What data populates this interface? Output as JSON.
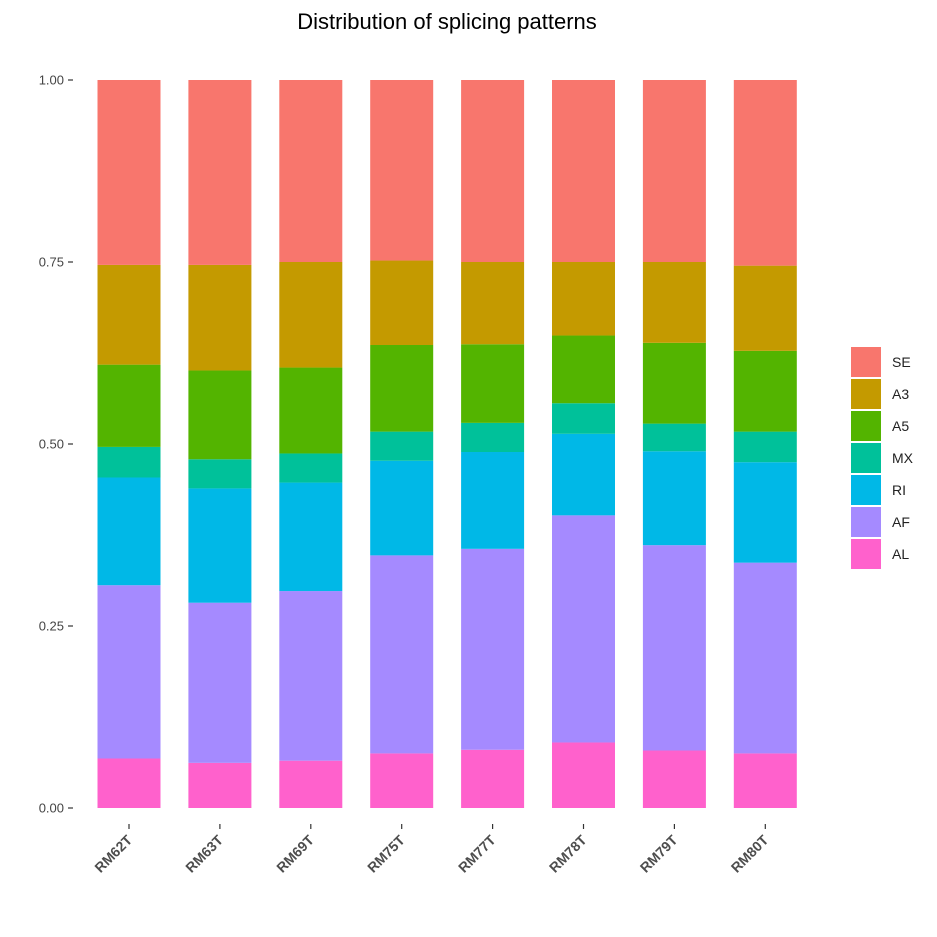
{
  "chart_data": {
    "type": "bar",
    "stacked": true,
    "title": "Distribution of splicing patterns",
    "xlabel": "",
    "ylabel": "",
    "ylim": [
      0,
      1
    ],
    "yticks": [
      "0.00",
      "0.25",
      "0.50",
      "0.75",
      "1.00"
    ],
    "grid": false,
    "legend_position": "right",
    "categories": [
      "RM62T",
      "RM63T",
      "RM69T",
      "RM75T",
      "RM77T",
      "RM78T",
      "RM79T",
      "RM80T"
    ],
    "series": [
      {
        "name": "AL",
        "color": "#FF61CC",
        "values": [
          0.068,
          0.062,
          0.065,
          0.075,
          0.08,
          0.09,
          0.079,
          0.075
        ]
      },
      {
        "name": "AF",
        "color": "#A58AFF",
        "values": [
          0.238,
          0.22,
          0.233,
          0.272,
          0.276,
          0.312,
          0.282,
          0.262
        ]
      },
      {
        "name": "RI",
        "color": "#00B8E7",
        "values": [
          0.148,
          0.157,
          0.149,
          0.13,
          0.133,
          0.112,
          0.129,
          0.138
        ]
      },
      {
        "name": "MX",
        "color": "#00C19A",
        "values": [
          0.042,
          0.04,
          0.04,
          0.04,
          0.04,
          0.042,
          0.038,
          0.042
        ]
      },
      {
        "name": "A5",
        "color": "#53B400",
        "values": [
          0.113,
          0.122,
          0.118,
          0.119,
          0.108,
          0.093,
          0.111,
          0.111
        ]
      },
      {
        "name": "A3",
        "color": "#C49A00",
        "values": [
          0.137,
          0.145,
          0.145,
          0.116,
          0.113,
          0.101,
          0.111,
          0.117
        ]
      },
      {
        "name": "SE",
        "color": "#F8766D",
        "values": [
          0.254,
          0.254,
          0.25,
          0.248,
          0.25,
          0.25,
          0.25,
          0.255
        ]
      }
    ],
    "legend_order": [
      "SE",
      "A3",
      "A5",
      "MX",
      "RI",
      "AF",
      "AL"
    ]
  }
}
